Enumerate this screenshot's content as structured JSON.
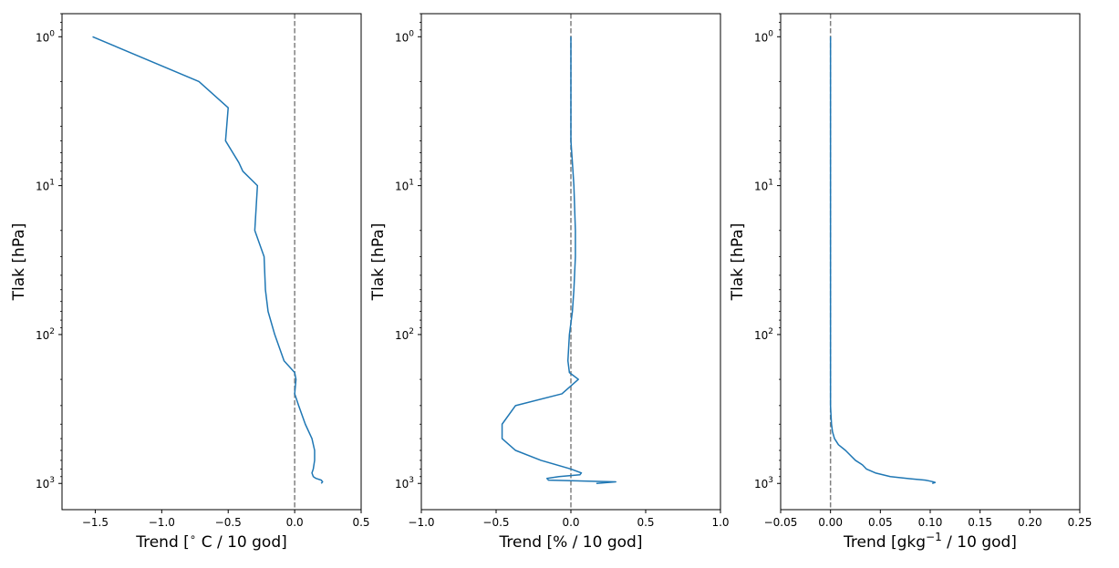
{
  "chart_data": [
    {
      "type": "line",
      "xlabel": "Trend [$^{\\circ}$ C / 10 god]",
      "xlabel_parts": {
        "pre": "Trend [",
        "sup": "∘",
        "post": " C / 10 god]"
      },
      "ylabel": "Tlak [hPa]",
      "xlim": [
        -1.75,
        0.5
      ],
      "ylim": [
        1500,
        0.7
      ],
      "yscale": "log",
      "y_inverted": true,
      "xticks": [
        -1.5,
        -1.0,
        -0.5,
        0.0,
        0.5
      ],
      "xtick_labels": [
        "−1.5",
        "−1.0",
        "−0.5",
        "0.0",
        "0.5"
      ],
      "yticks": [
        1,
        10,
        100,
        1000
      ],
      "ytick_labels": [
        {
          "base": "10",
          "exp": "0"
        },
        {
          "base": "10",
          "exp": "1"
        },
        {
          "base": "10",
          "exp": "2"
        },
        {
          "base": "10",
          "exp": "3"
        }
      ],
      "reference_line": {
        "x": 0.0,
        "style": "dashed",
        "color": "#808080"
      },
      "grid": false,
      "series": [
        {
          "color": "#1f77b4",
          "x": [
            -1.52,
            -0.72,
            -0.5,
            -0.52,
            -0.42,
            -0.39,
            -0.28,
            -0.3,
            -0.23,
            -0.22,
            -0.2,
            -0.15,
            -0.08,
            0.0,
            0.01,
            0.0,
            0.03,
            0.08,
            0.13,
            0.15,
            0.15,
            0.14,
            0.13,
            0.14,
            0.16,
            0.2,
            0.21,
            0.2
          ],
          "y": [
            1,
            2,
            3,
            5,
            7,
            8,
            10,
            20,
            30,
            50,
            70,
            100,
            150,
            180,
            200,
            250,
            300,
            400,
            500,
            600,
            700,
            800,
            850,
            900,
            925,
            950,
            975,
            1000
          ]
        }
      ]
    },
    {
      "type": "line",
      "xlabel": "Trend [% / 10 god]",
      "ylabel": "Tlak [hPa]",
      "xlim": [
        -1.0,
        1.0
      ],
      "ylim": [
        1500,
        0.7
      ],
      "yscale": "log",
      "y_inverted": true,
      "xticks": [
        -1.0,
        -0.5,
        0.0,
        0.5,
        1.0
      ],
      "xtick_labels": [
        "−1.0",
        "−0.5",
        "0.0",
        "0.5",
        "1.0"
      ],
      "yticks": [
        1,
        10,
        100,
        1000
      ],
      "ytick_labels": [
        {
          "base": "10",
          "exp": "0"
        },
        {
          "base": "10",
          "exp": "1"
        },
        {
          "base": "10",
          "exp": "2"
        },
        {
          "base": "10",
          "exp": "3"
        }
      ],
      "reference_line": {
        "x": 0.0,
        "style": "dashed",
        "color": "#808080"
      },
      "grid": false,
      "series": [
        {
          "color": "#1f77b4",
          "x": [
            0.0,
            0.0,
            0.0,
            0.0,
            0.01,
            0.02,
            0.03,
            0.03,
            0.02,
            0.01,
            -0.01,
            -0.02,
            -0.01,
            0.05,
            -0.06,
            -0.37,
            -0.46,
            -0.46,
            -0.37,
            -0.2,
            0.0,
            0.07,
            0.06,
            -0.08,
            -0.16,
            -0.15,
            0.3,
            0.17
          ],
          "y": [
            1,
            2,
            3,
            5,
            7,
            10,
            20,
            30,
            50,
            70,
            100,
            150,
            180,
            200,
            250,
            300,
            400,
            500,
            600,
            700,
            800,
            850,
            875,
            900,
            925,
            950,
            975,
            1000
          ]
        }
      ]
    },
    {
      "type": "line",
      "xlabel": "Trend [gkg$^{-1}$ / 10 god]",
      "xlabel_parts": {
        "pre": "Trend [gkg",
        "sup": "−1",
        "post": " / 10 god]"
      },
      "ylabel": "Tlak [hPa]",
      "xlim": [
        -0.05,
        0.25
      ],
      "ylim": [
        1500,
        0.7
      ],
      "yscale": "log",
      "y_inverted": true,
      "xticks": [
        -0.05,
        0.0,
        0.05,
        0.1,
        0.15,
        0.2,
        0.25
      ],
      "xtick_labels": [
        "−0.05",
        "0.00",
        "0.05",
        "0.10",
        "0.15",
        "0.20",
        "0.25"
      ],
      "yticks": [
        1,
        10,
        100,
        1000
      ],
      "ytick_labels": [
        {
          "base": "10",
          "exp": "0"
        },
        {
          "base": "10",
          "exp": "1"
        },
        {
          "base": "10",
          "exp": "2"
        },
        {
          "base": "10",
          "exp": "3"
        }
      ],
      "reference_line": {
        "x": 0.0,
        "style": "dashed",
        "color": "#808080"
      },
      "grid": false,
      "series": [
        {
          "color": "#1f77b4",
          "x": [
            0.0,
            0.0,
            0.0,
            0.0,
            0.0,
            0.0,
            0.0,
            0.0,
            0.0005,
            0.001,
            0.002,
            0.004,
            0.008,
            0.015,
            0.025,
            0.032,
            0.036,
            0.045,
            0.06,
            0.08,
            0.095,
            0.103,
            0.105,
            0.102
          ],
          "y": [
            1,
            10,
            50,
            100,
            150,
            200,
            250,
            300,
            350,
            400,
            450,
            500,
            550,
            600,
            700,
            750,
            800,
            850,
            900,
            930,
            950,
            975,
            985,
            1000
          ]
        }
      ]
    }
  ]
}
